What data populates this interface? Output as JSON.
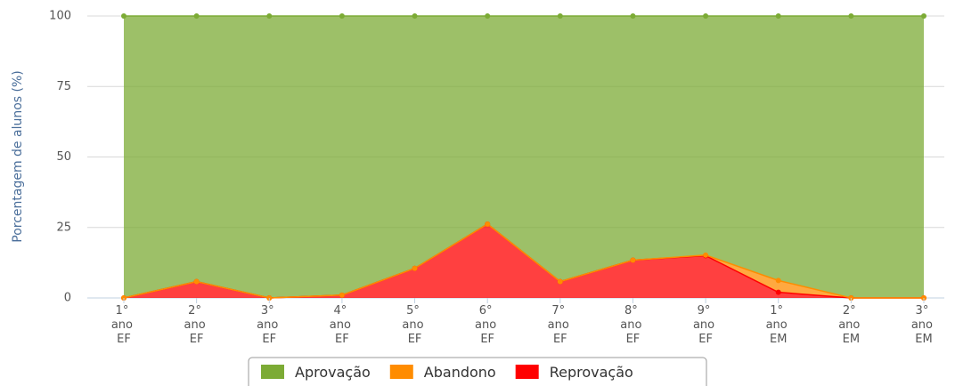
{
  "chart_data": {
    "type": "stacked_area",
    "y_label": "Porcentagem de alunos (%)",
    "categories": [
      "1° ano EF",
      "2° ano EF",
      "3° ano EF",
      "4° ano EF",
      "5° ano EF",
      "6° ano EF",
      "7° ano EF",
      "8° ano EF",
      "9° ano EF",
      "1° ano EM",
      "2° ano EM",
      "3° ano EM"
    ],
    "series": [
      {
        "name": "Aprovação",
        "color": "#7cab35",
        "values": [
          100,
          94.2,
          100,
          99,
          89.5,
          73.8,
          94.2,
          86.6,
          84.8,
          93.8,
          100,
          100
        ]
      },
      {
        "name": "Abandono",
        "color": "#ff8c00",
        "values": [
          0,
          0,
          0,
          0,
          0,
          0,
          0,
          0,
          0.2,
          4.2,
          0,
          0
        ]
      },
      {
        "name": "Reprovação",
        "color": "#ff0000",
        "values": [
          0,
          5.8,
          0,
          1,
          10.5,
          26.2,
          5.8,
          13.4,
          15,
          2,
          0,
          0
        ]
      }
    ],
    "ylim": [
      0,
      100
    ],
    "yticks": [
      0,
      25,
      50,
      75,
      100
    ],
    "grid": true,
    "legend": "bottom"
  }
}
